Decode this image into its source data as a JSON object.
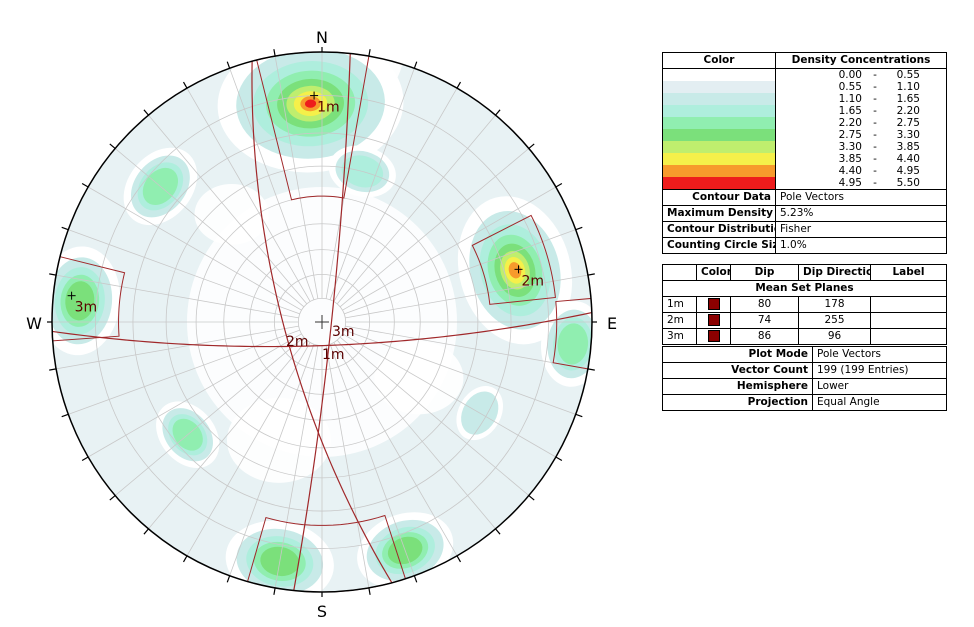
{
  "compass": {
    "n": "N",
    "e": "E",
    "s": "S",
    "w": "W"
  },
  "colors": {
    "rim": "#000000",
    "plane": "#a0282a",
    "grid": "#c8c8c8"
  },
  "density_table": {
    "header_color": "Color",
    "header_range": "Density Concentrations",
    "rows": [
      {
        "color": "#ffffff",
        "from": "0.00",
        "sep": "-",
        "to": "0.55"
      },
      {
        "color": "#e3eef2",
        "from": "0.55",
        "sep": "-",
        "to": "1.10"
      },
      {
        "color": "#c8eae8",
        "from": "1.10",
        "sep": "-",
        "to": "1.65"
      },
      {
        "color": "#aeeedd",
        "from": "1.65",
        "sep": "-",
        "to": "2.20"
      },
      {
        "color": "#90eeb0",
        "from": "2.20",
        "sep": "-",
        "to": "2.75"
      },
      {
        "color": "#7be07b",
        "from": "2.75",
        "sep": "-",
        "to": "3.30"
      },
      {
        "color": "#bfee6e",
        "from": "3.30",
        "sep": "-",
        "to": "3.85"
      },
      {
        "color": "#f5f04a",
        "from": "3.85",
        "sep": "-",
        "to": "4.40"
      },
      {
        "color": "#f79a2c",
        "from": "4.40",
        "sep": "-",
        "to": "4.95"
      },
      {
        "color": "#ee1c1c",
        "from": "4.95",
        "sep": "-",
        "to": "5.50"
      }
    ],
    "contour_data_label": "Contour Data",
    "contour_data_value": "Pole Vectors",
    "max_density_label": "Maximum Density",
    "max_density_value": "5.23%",
    "distribution_label": "Contour Distribution",
    "distribution_value": "Fisher",
    "circle_size_label": "Counting Circle Size",
    "circle_size_value": "1.0%"
  },
  "planes_table": {
    "h_color": "Color",
    "h_dip": "Dip",
    "h_dipdir": "Dip Direction",
    "h_label": "Label",
    "section_title": "Mean Set Planes",
    "rows": [
      {
        "id": "1m",
        "dip": "80",
        "dipdir": "178",
        "label": ""
      },
      {
        "id": "2m",
        "dip": "74",
        "dipdir": "255",
        "label": ""
      },
      {
        "id": "3m",
        "dip": "86",
        "dipdir": "96",
        "label": ""
      }
    ]
  },
  "info_table": {
    "plot_mode_label": "Plot Mode",
    "plot_mode_value": "Pole Vectors",
    "vector_count_label": "Vector Count",
    "vector_count_value": "199 (199 Entries)",
    "hemisphere_label": "Hemisphere",
    "hemisphere_value": "Lower",
    "projection_label": "Projection",
    "projection_value": "Equal Angle"
  },
  "chart_data": {
    "type": "stereonet",
    "projection": "Equal Angle",
    "hemisphere": "Lower",
    "grid": true,
    "mean_set_planes": [
      {
        "label": "1m",
        "dip": 80,
        "dip_direction": 178
      },
      {
        "label": "2m",
        "dip": 74,
        "dip_direction": 255
      },
      {
        "label": "3m",
        "dip": 86,
        "dip_direction": 96
      }
    ],
    "pole_labels": [
      {
        "label": "1m",
        "trend": 358,
        "plunge": 10
      },
      {
        "label": "2m",
        "trend": 75,
        "plunge": 16
      },
      {
        "label": "3m",
        "trend": 276,
        "plunge": 4
      }
    ],
    "plane_labels": [
      "2m",
      "1m",
      "3m"
    ],
    "density_peaks": [
      {
        "trend": 357,
        "plunge": 12,
        "level": 5.23
      },
      {
        "trend": 75,
        "plunge": 17,
        "level": 4.4
      },
      {
        "trend": 275,
        "plunge": 6,
        "level": 3.3
      },
      {
        "trend": 190,
        "plunge": 6,
        "level": 3.3
      },
      {
        "trend": 160,
        "plunge": 6,
        "level": 3.0
      },
      {
        "trend": 310,
        "plunge": 14,
        "level": 2.6
      },
      {
        "trend": 95,
        "plunge": 4,
        "level": 2.6
      },
      {
        "trend": 230,
        "plunge": 24,
        "level": 2.2
      },
      {
        "trend": 15,
        "plunge": 30,
        "level": 2.0
      },
      {
        "trend": 120,
        "plunge": 22,
        "level": 1.6
      }
    ],
    "set_windows": [
      {
        "label": "1m",
        "trend_range": [
          346,
          10
        ],
        "plunge_range": [
          0,
          40
        ]
      },
      {
        "label": "2m",
        "trend_range": [
          63,
          84
        ],
        "plunge_range": [
          8,
          26
        ]
      },
      {
        "label": "3m",
        "trend_range": [
          266,
          284
        ],
        "plunge_range": [
          0,
          16
        ]
      },
      {
        "label": "E",
        "trend_range": [
          85,
          100
        ],
        "plunge_range": [
          0,
          8
        ]
      },
      {
        "label": "S",
        "trend_range": [
          162,
          196
        ],
        "plunge_range": [
          0,
          16
        ]
      }
    ]
  }
}
